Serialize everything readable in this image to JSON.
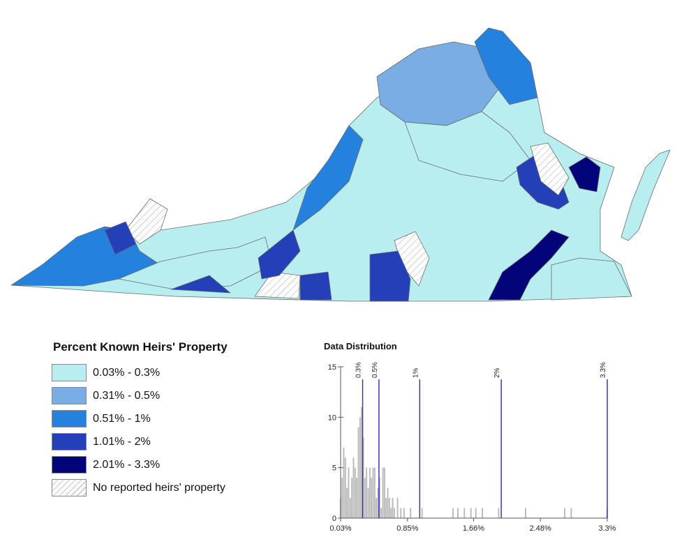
{
  "legend": {
    "title": "Percent Known Heirs' Property",
    "classes": [
      {
        "label": "0.03% - 0.3%",
        "color": "#b9eef0"
      },
      {
        "label": "0.31% - 0.5%",
        "color": "#79ade3"
      },
      {
        "label": "0.51% - 1%",
        "color": "#2481de"
      },
      {
        "label": "1.01% - 2%",
        "color": "#2340b8"
      },
      {
        "label": "2.01% - 3.3%",
        "color": "#03037a"
      },
      {
        "label": "No reported heirs' property",
        "color": "hatch"
      }
    ]
  },
  "distribution": {
    "title": "Data Distribution",
    "x_tick_labels": [
      "0.03%",
      "0.85%",
      "1.66%",
      "2.48%",
      "3.3%"
    ],
    "y_tick_labels": [
      "0",
      "5",
      "10",
      "15"
    ],
    "break_labels": [
      "0.3%",
      "0.5%",
      "1%",
      "2%",
      "3.3%"
    ]
  },
  "chart_data": {
    "type": "bar",
    "title": "Data Distribution",
    "xlabel": "",
    "ylabel": "",
    "xlim": [
      0.03,
      3.3
    ],
    "ylim": [
      0,
      15
    ],
    "bin_width": 0.02,
    "x_ticks": [
      0.03,
      0.85,
      1.66,
      2.48,
      3.3
    ],
    "y_ticks": [
      0,
      5,
      10,
      15
    ],
    "class_breaks": [
      0.3,
      0.5,
      1,
      2,
      3.3
    ],
    "bins": [
      {
        "x": 0.03,
        "count": 2
      },
      {
        "x": 0.05,
        "count": 4
      },
      {
        "x": 0.07,
        "count": 7
      },
      {
        "x": 0.09,
        "count": 6
      },
      {
        "x": 0.11,
        "count": 3
      },
      {
        "x": 0.13,
        "count": 5
      },
      {
        "x": 0.15,
        "count": 2
      },
      {
        "x": 0.17,
        "count": 4
      },
      {
        "x": 0.19,
        "count": 6
      },
      {
        "x": 0.21,
        "count": 5
      },
      {
        "x": 0.23,
        "count": 4
      },
      {
        "x": 0.25,
        "count": 9
      },
      {
        "x": 0.27,
        "count": 10
      },
      {
        "x": 0.29,
        "count": 11
      },
      {
        "x": 0.31,
        "count": 8
      },
      {
        "x": 0.33,
        "count": 4
      },
      {
        "x": 0.35,
        "count": 5
      },
      {
        "x": 0.37,
        "count": 3
      },
      {
        "x": 0.39,
        "count": 5
      },
      {
        "x": 0.41,
        "count": 4
      },
      {
        "x": 0.43,
        "count": 5
      },
      {
        "x": 0.45,
        "count": 5
      },
      {
        "x": 0.47,
        "count": 2
      },
      {
        "x": 0.49,
        "count": 3
      },
      {
        "x": 0.51,
        "count": 4
      },
      {
        "x": 0.53,
        "count": 1
      },
      {
        "x": 0.55,
        "count": 5
      },
      {
        "x": 0.57,
        "count": 5
      },
      {
        "x": 0.59,
        "count": 2
      },
      {
        "x": 0.61,
        "count": 3
      },
      {
        "x": 0.63,
        "count": 2
      },
      {
        "x": 0.65,
        "count": 1
      },
      {
        "x": 0.67,
        "count": 2
      },
      {
        "x": 0.69,
        "count": 1
      },
      {
        "x": 0.73,
        "count": 2
      },
      {
        "x": 0.77,
        "count": 1
      },
      {
        "x": 0.81,
        "count": 1
      },
      {
        "x": 0.89,
        "count": 1
      },
      {
        "x": 1.03,
        "count": 1
      },
      {
        "x": 1.41,
        "count": 1
      },
      {
        "x": 1.47,
        "count": 1
      },
      {
        "x": 1.55,
        "count": 1
      },
      {
        "x": 1.63,
        "count": 1
      },
      {
        "x": 1.69,
        "count": 1
      },
      {
        "x": 1.77,
        "count": 1
      },
      {
        "x": 1.97,
        "count": 1
      },
      {
        "x": 2.3,
        "count": 1
      },
      {
        "x": 2.78,
        "count": 1
      },
      {
        "x": 2.86,
        "count": 1
      },
      {
        "x": 3.3,
        "count": 1
      }
    ]
  },
  "map_regions": {
    "west": "#2481de",
    "southwest": "#b9eef0",
    "central": "#b9eef0",
    "south_central": "#b9eef0",
    "north": "#79ade3",
    "northern_virginia": "#2481de",
    "shenandoah": "#2481de",
    "piedmont_north": "#b9eef0",
    "tidewater": "#b9eef0",
    "hampton_roads": "#b9eef0",
    "eastern_shore": "#b9eef0",
    "southside_east": "#03037a",
    "northern_neck": "#2340b8",
    "northern_neck_tip": "#03037a",
    "hatch": "#ffffff"
  }
}
